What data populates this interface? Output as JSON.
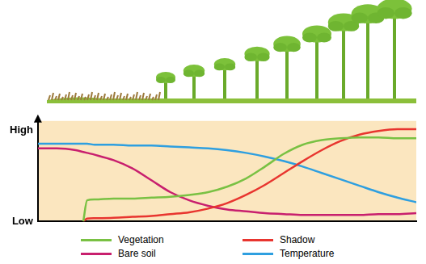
{
  "chart_data": {
    "type": "line",
    "x": [
      0,
      5,
      10,
      12,
      13,
      15,
      20,
      25,
      30,
      35,
      40,
      45,
      50,
      55,
      60,
      65,
      70,
      75,
      80,
      85,
      90,
      95,
      100
    ],
    "xlim": [
      0,
      100
    ],
    "ylim": [
      0,
      11
    ],
    "yticks": [
      {
        "value": 0,
        "label": "Low"
      },
      {
        "value": 10,
        "label": "High"
      }
    ],
    "tick_labels": "y",
    "grid": false,
    "legend": "bottom",
    "series": [
      {
        "name": "Vegetation",
        "color": "#79c143",
        "values": [
          null,
          null,
          null,
          0,
          2.3,
          2.4,
          2.5,
          2.5,
          2.6,
          2.7,
          2.9,
          3.2,
          3.8,
          4.7,
          6.0,
          7.4,
          8.4,
          8.9,
          9.1,
          9.2,
          9.2,
          9.1,
          9.1
        ]
      },
      {
        "name": "Shadow",
        "color": "#e8352f",
        "values": [
          null,
          null,
          null,
          0,
          0.3,
          0.35,
          0.4,
          0.5,
          0.6,
          0.8,
          1.0,
          1.4,
          2.0,
          2.9,
          4.0,
          5.3,
          6.6,
          7.8,
          8.8,
          9.5,
          9.9,
          10.1,
          10.1
        ]
      },
      {
        "name": "Bare soil",
        "color": "#c81f6e",
        "values": [
          8.0,
          8.0,
          7.8,
          7.6,
          7.5,
          7.3,
          6.7,
          5.8,
          4.5,
          3.2,
          2.3,
          1.7,
          1.3,
          1.1,
          0.9,
          0.8,
          0.7,
          0.7,
          0.7,
          0.7,
          0.8,
          0.8,
          0.9
        ]
      },
      {
        "name": "Temperature",
        "color": "#2e9fe0",
        "values": [
          8.5,
          8.5,
          8.5,
          8.5,
          8.5,
          8.4,
          8.4,
          8.3,
          8.3,
          8.2,
          8.1,
          8.0,
          7.8,
          7.5,
          7.1,
          6.6,
          6.0,
          5.3,
          4.6,
          3.9,
          3.2,
          2.6,
          2.1
        ]
      }
    ]
  }
}
